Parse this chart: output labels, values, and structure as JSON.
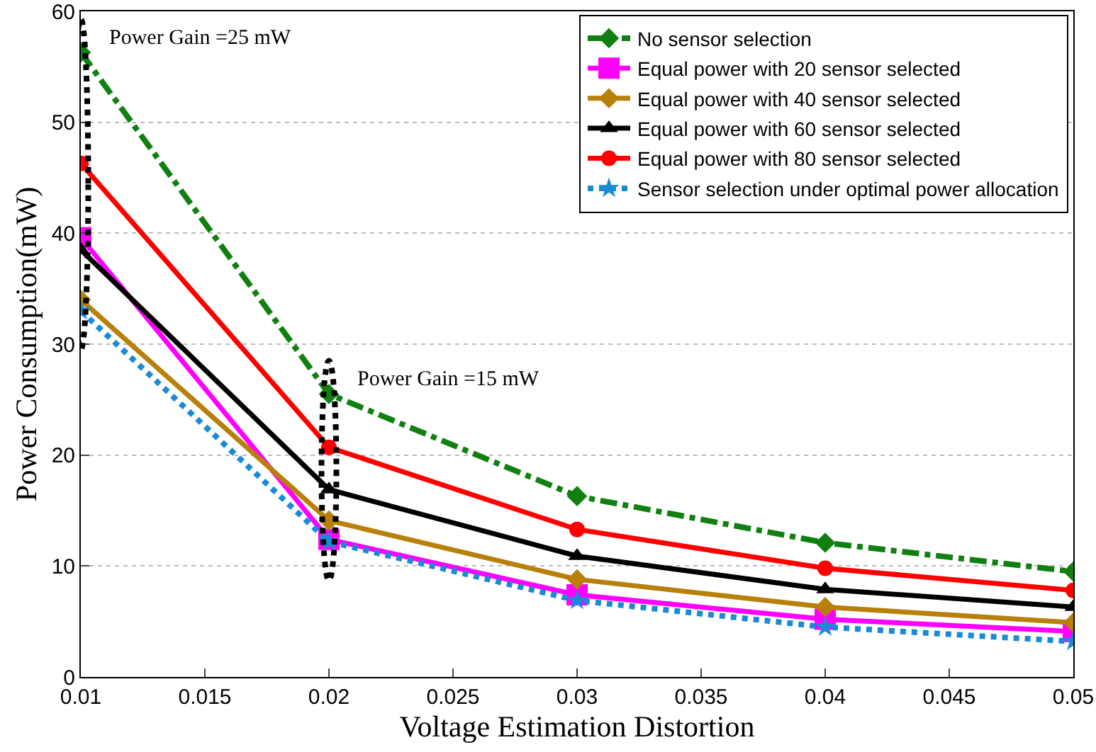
{
  "chart_data": {
    "type": "line",
    "xlabel": "Voltage Estimation Distortion",
    "ylabel": "Power Consumption(mW)",
    "x": [
      0.01,
      0.02,
      0.03,
      0.04,
      0.05
    ],
    "xlim": [
      0.01,
      0.05
    ],
    "xticks": [
      0.01,
      0.015,
      0.02,
      0.025,
      0.03,
      0.035,
      0.04,
      0.045,
      0.05
    ],
    "ylim": [
      0,
      60
    ],
    "yticks": [
      0,
      10,
      20,
      30,
      40,
      50,
      60
    ],
    "grid": "y",
    "legend": "top right",
    "series": [
      {
        "name": "No sensor selection",
        "color": "#108010",
        "marker": "diamond",
        "line_style": "dashed",
        "values": [
          56.3,
          25.5,
          16.3,
          12.1,
          9.5
        ]
      },
      {
        "name": "Equal power with 20 sensor selected",
        "color": "#ff00ff",
        "marker": "square",
        "line_style": "solid",
        "values": [
          39.6,
          12.4,
          7.4,
          5.2,
          4.1
        ]
      },
      {
        "name": "Equal power with 40 sensor selected",
        "color": "#b8800a",
        "marker": "diamond",
        "line_style": "solid",
        "values": [
          34,
          14.1,
          8.8,
          6.3,
          4.9
        ]
      },
      {
        "name": "Equal power with 60 sensor selected",
        "color": "#000000",
        "marker": "triangle",
        "line_style": "solid",
        "values": [
          38.5,
          16.9,
          10.9,
          7.9,
          6.3
        ]
      },
      {
        "name": "Equal power with 80 sensor selected",
        "color": "#ff0000",
        "marker": "circle",
        "line_style": "solid",
        "values": [
          46.3,
          20.7,
          13.3,
          9.8,
          7.8
        ]
      },
      {
        "name": "Sensor selection under optimal power allocation",
        "color": "#1a8ad4",
        "marker": "star",
        "line_style": "dotted",
        "values": [
          33,
          12.2,
          6.9,
          4.5,
          3.2
        ]
      }
    ],
    "annotations": [
      {
        "text": "Power Gain =25 mW",
        "x": 0.01,
        "y": 56.3
      },
      {
        "text": "Power Gain =15 mW",
        "x": 0.02,
        "y": 25.5
      }
    ]
  }
}
